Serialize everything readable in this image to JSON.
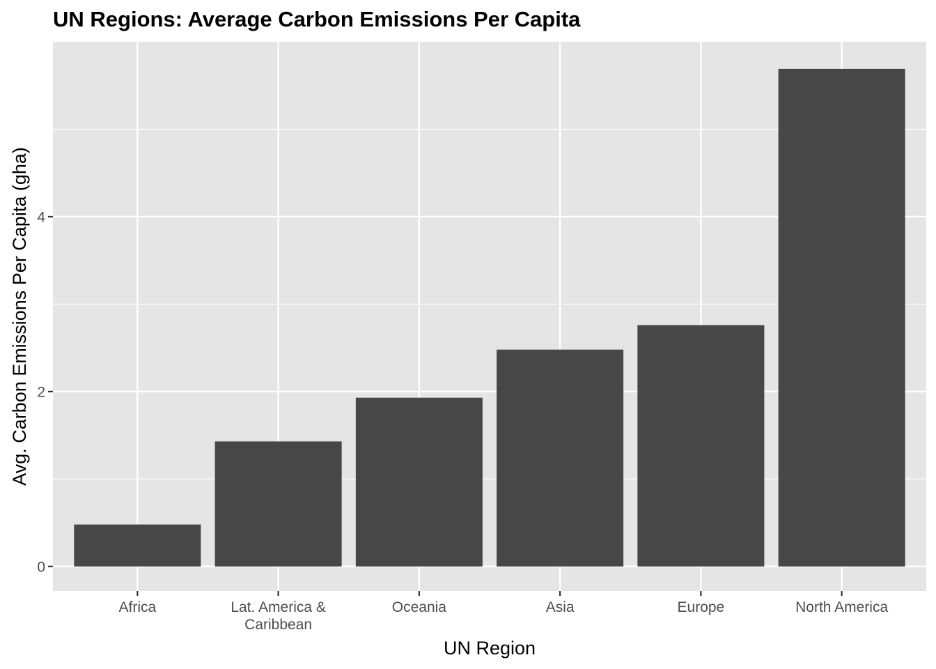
{
  "chart_data": {
    "type": "bar",
    "title": "UN Regions: Average Carbon Emissions Per Capita",
    "xlabel": "UN Region",
    "ylabel": "Avg. Carbon Emissions Per Capita (gha)",
    "categories": [
      [
        "Africa"
      ],
      [
        "Lat. America &",
        "Caribbean"
      ],
      [
        "Oceania"
      ],
      [
        "Asia"
      ],
      [
        "Europe"
      ],
      [
        "North America"
      ]
    ],
    "values": [
      0.48,
      1.43,
      1.93,
      2.48,
      2.76,
      5.69
    ],
    "ylim": [
      -0.28,
      6.0
    ],
    "y_ticks": [
      0,
      2,
      4
    ],
    "y_tick_labels": [
      "0",
      "2",
      "4"
    ],
    "grid": true,
    "legend": "none",
    "colors": {
      "bar": "#474747",
      "panel": "#e5e5e5",
      "grid": "#ffffff",
      "tick_text": "#4d4d4d",
      "tick_mark": "#333333"
    }
  }
}
